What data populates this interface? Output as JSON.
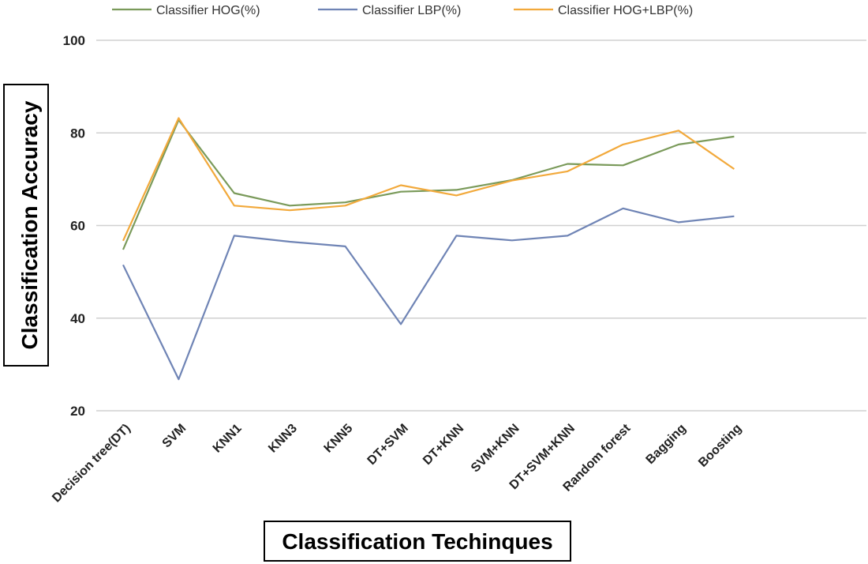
{
  "chart_data": {
    "type": "line",
    "title": "",
    "xlabel": "Classification Techinques",
    "ylabel": "Classification Accuracy",
    "ylim": [
      20,
      100
    ],
    "yticks": [
      20,
      40,
      60,
      80,
      100
    ],
    "grid": true,
    "legend_position": "top",
    "categories": [
      "Decision tree(DT)",
      "SVM",
      "KNN1",
      "KNN3",
      "KNN5",
      "DT+SVM",
      "DT+KNN",
      "SVM+KNN",
      "DT+SVM+KNN",
      "Random forest",
      "Bagging",
      "Boosting"
    ],
    "series": [
      {
        "name": "Classifier HOG(%)",
        "color": "#7a9a5a",
        "values": [
          54.8,
          82.8,
          67.0,
          64.3,
          65.0,
          67.3,
          67.7,
          69.8,
          73.3,
          73.0,
          77.5,
          79.2
        ]
      },
      {
        "name": "Classifier LBP(%)",
        "color": "#6f84b5",
        "values": [
          51.5,
          26.8,
          57.8,
          56.5,
          55.5,
          38.7,
          57.8,
          56.8,
          57.8,
          63.7,
          60.7,
          62.0
        ]
      },
      {
        "name": "Classifier HOG+LBP(%)",
        "color": "#f2a93b",
        "values": [
          56.7,
          83.2,
          64.3,
          63.3,
          64.3,
          68.7,
          66.5,
          69.7,
          71.7,
          77.5,
          80.5,
          72.2
        ]
      }
    ]
  }
}
